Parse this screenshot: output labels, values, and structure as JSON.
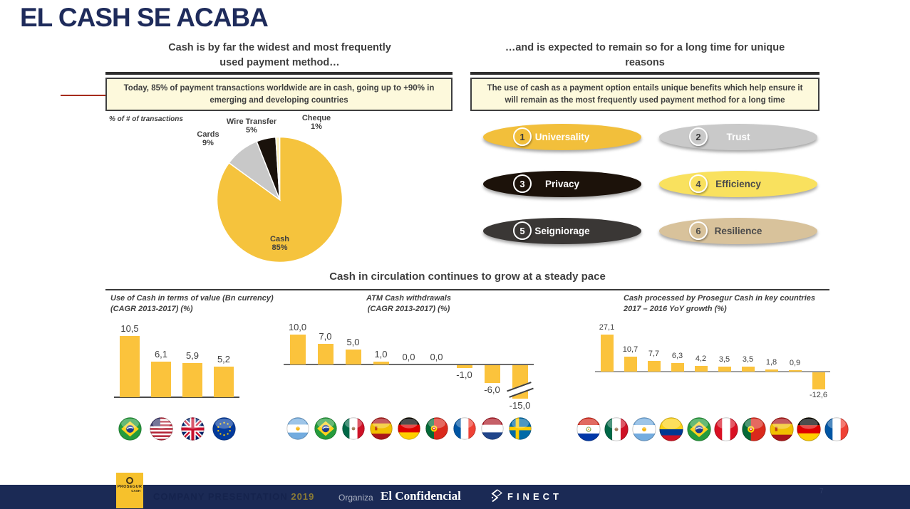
{
  "slide": {
    "title": "EL CASH SE ACABA",
    "page_number": "7"
  },
  "colors": {
    "accent_gold": "#F5C33D",
    "navy_title": "#1E2B5B",
    "callout_bg": "#FDF9DC",
    "text_dark": "#3F3F3F",
    "footer_navy": "#1B2A55",
    "red_connector": "#A62B1C"
  },
  "left_panel": {
    "header_line1": "Cash is by far the widest and most frequently",
    "header_line2": "used payment method…",
    "callout": "Today, 85% of payment transactions worldwide are in cash, going up to +90% in emerging and developing countries",
    "axis_note": "% of # of transactions"
  },
  "right_panel": {
    "header_line1": "…and is expected to remain so for a long time for unique",
    "header_line2": "reasons",
    "callout": "The use of cash as a payment option entails unique benefits which help ensure it will remain as the most frequently used payment method for a long time",
    "benefits": [
      {
        "number": "1",
        "label": "Universality",
        "bg": "#F2BF3B",
        "text": "#FFFFFF",
        "badge_text": "#3b3b3b"
      },
      {
        "number": "2",
        "label": "Trust",
        "bg": "#C9C9C9",
        "text": "#FFFFFF",
        "badge_text": "#3b3b3b"
      },
      {
        "number": "3",
        "label": "Privacy",
        "bg": "#1C120A",
        "text": "#FFFFFF",
        "badge_text": "#FFFFFF"
      },
      {
        "number": "4",
        "label": "Efficiency",
        "bg": "#F9E15E",
        "text": "#4a4a4a",
        "badge_text": "#4a4a4a"
      },
      {
        "number": "5",
        "label": "Seigniorage",
        "bg": "#3A3735",
        "text": "#FFFFFF",
        "badge_text": "#FFFFFF"
      },
      {
        "number": "6",
        "label": "Resilience",
        "bg": "#D8C29B",
        "text": "#4a4a4a",
        "badge_text": "#4a4a4a"
      }
    ]
  },
  "bottom_section": {
    "title": "Cash in circulation continues to grow at a steady pace"
  },
  "footer": {
    "logo_text": "PROSEGUR",
    "logo_sub": "CASH",
    "presentation_label": "COMPANY PRESENTATION",
    "presentation_year": "2019",
    "organiza_label": "Organiza",
    "brand_confidencial": "El Confidencial",
    "brand_finect": "FINECT"
  },
  "chart_data": [
    {
      "id": "payment-method-pie",
      "type": "pie",
      "title": "% of # of transactions",
      "slices": [
        {
          "label": "Cash",
          "value": 85,
          "pct": "85%",
          "color": "#F5C33D"
        },
        {
          "label": "Cards",
          "value": 9,
          "pct": "9%",
          "color": "#C8C8C8"
        },
        {
          "label": "Wire Transfer",
          "value": 5,
          "pct": "5%",
          "color": "#1A120B"
        },
        {
          "label": "Cheque",
          "value": 1,
          "pct": "1%",
          "color": "#FCF1BC"
        }
      ]
    },
    {
      "id": "use-of-cash-value",
      "type": "bar",
      "title": "Use of Cash in terms of value (Bn currency) (CAGR 2013-2017) (%)",
      "title_line1": "Use of Cash in terms of value (Bn currency)",
      "title_line2": "(CAGR 2013-2017) (%)",
      "categories": [
        "Brazil",
        "USA",
        "UK",
        "EU"
      ],
      "values": [
        10.5,
        6.1,
        5.9,
        5.2
      ],
      "labels": [
        "10,5",
        "6,1",
        "5,9",
        "5,2"
      ],
      "bar_color": "#FBC33C"
    },
    {
      "id": "atm-cash-withdrawals",
      "type": "bar",
      "title": "ATM Cash withdrawals (CAGR 2013-2017) (%)",
      "title_line1": "ATM Cash withdrawals",
      "title_line2": "(CAGR 2013-2017) (%)",
      "categories": [
        "Argentina",
        "Brazil",
        "Mexico",
        "Spain",
        "Germany",
        "Portugal",
        "France",
        "Netherlands",
        "Sweden"
      ],
      "values": [
        10.0,
        7.0,
        5.0,
        1.0,
        0.0,
        0.0,
        -1.0,
        -6.0,
        -15.0
      ],
      "labels": [
        "10,0",
        "7,0",
        "5,0",
        "1,0",
        "0,0",
        "0,0",
        "-1,0",
        "-6,0",
        "-15,0"
      ],
      "axis_break_on_last": true,
      "bar_color": "#FBC33C"
    },
    {
      "id": "prosegur-cash-processed",
      "type": "bar",
      "title": "Cash processed by Prosegur Cash in key countries 2017 – 2016 YoY growth (%)",
      "title_line1": "Cash processed by Prosegur Cash in key countries",
      "title_line2": "2017 – 2016 YoY growth (%)",
      "categories": [
        "Paraguay",
        "Mexico",
        "Argentina",
        "Colombia",
        "Brazil",
        "Peru",
        "Portugal",
        "Spain",
        "Germany",
        "France"
      ],
      "values": [
        27.1,
        10.7,
        7.7,
        6.3,
        4.2,
        3.5,
        3.5,
        1.8,
        0.9,
        -12.6
      ],
      "labels": [
        "27,1",
        "10,7",
        "7,7",
        "6,3",
        "4,2",
        "3,5",
        "3,5",
        "1,8",
        "0,9",
        "-12,6"
      ],
      "bar_color": "#FBC33C"
    }
  ]
}
